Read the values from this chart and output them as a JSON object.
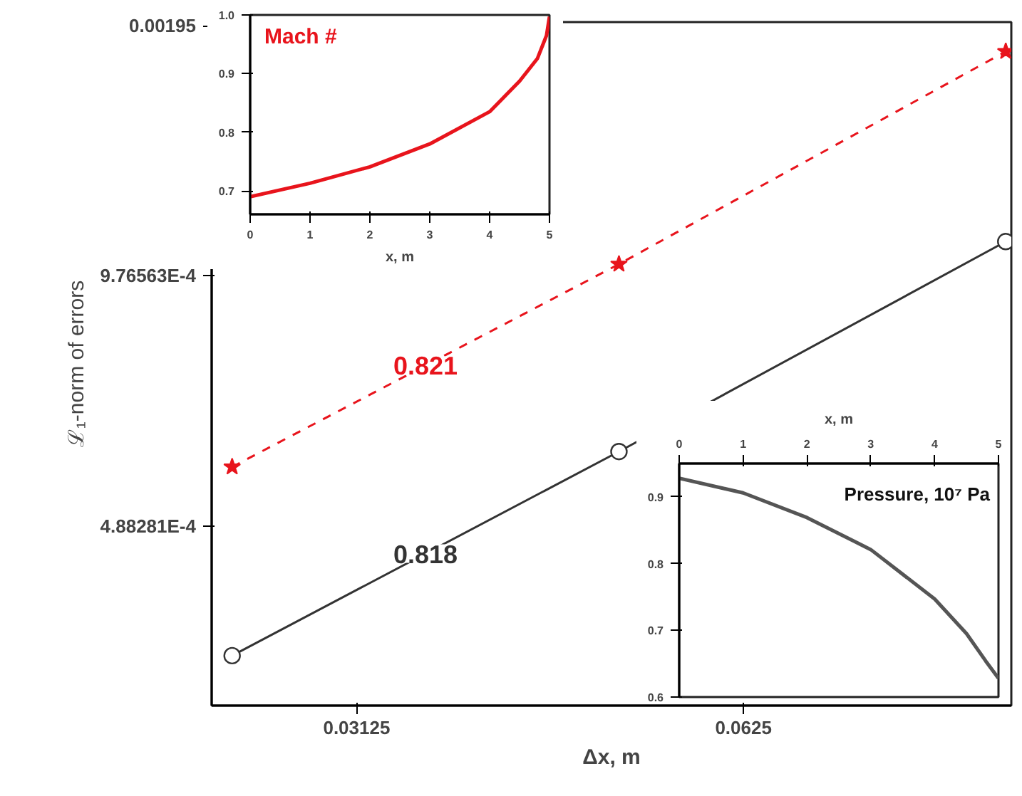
{
  "chart_data": [
    {
      "type": "line",
      "log": "xy",
      "xlabel": "Δx, m",
      "ylabel": "ℒ₁-norm of errors",
      "xlim": [
        0.0241,
        0.101
      ],
      "ylim": [
        0.000297,
        0.00197
      ],
      "xticks": [
        0.03125,
        0.0625
      ],
      "yticks": [
        {
          "value": 0.000488281,
          "label": "4.88281E-4"
        },
        {
          "value": 0.000976563,
          "label": "9.76563E-4"
        },
        0.00195
      ],
      "series": [
        {
          "color": "#333333",
          "marker": "circle",
          "line_style": "solid",
          "x": [
            0.025,
            0.05,
            0.1
          ],
          "values": [
            0.000341,
            0.0006,
            0.001073
          ]
        },
        {
          "color": "#e8141c",
          "marker": "star",
          "line_style": "dashed",
          "x": [
            0.025,
            0.05,
            0.1
          ],
          "values": [
            0.000575,
            0.001008,
            0.001816
          ]
        }
      ],
      "annotations": [
        "0.818",
        "0.821"
      ]
    },
    {
      "type": "line",
      "title": "Mach #",
      "xlabel": "x, m",
      "xlim": [
        0,
        5
      ],
      "ylim": [
        0.66,
        1.0
      ],
      "xticks": [
        0,
        1,
        2,
        3,
        4,
        5
      ],
      "yticks": [
        0.7,
        0.8,
        0.9,
        {
          "value": 1.0,
          "label": "1.0"
        }
      ],
      "series": [
        {
          "color": "#e8141c",
          "x": [
            0,
            1,
            2,
            3,
            4,
            4.5,
            4.8,
            4.95,
            5
          ],
          "values": [
            0.69,
            0.713,
            0.741,
            0.78,
            0.835,
            0.887,
            0.926,
            0.965,
            0.997
          ]
        }
      ]
    },
    {
      "type": "line",
      "title": "Pressure, 10⁷ Pa",
      "xlabel": "x, m",
      "xlim": [
        0,
        5
      ],
      "ylim": [
        0.6,
        0.95
      ],
      "xticks": [
        0,
        1,
        2,
        3,
        4,
        5
      ],
      "yticks": [
        0.6,
        0.7,
        0.8,
        0.9
      ],
      "series": [
        {
          "color": "#555555",
          "x": [
            0,
            1,
            2,
            3,
            4,
            4.5,
            4.8,
            5
          ],
          "values": [
            0.928,
            0.906,
            0.869,
            0.821,
            0.747,
            0.695,
            0.654,
            0.628
          ]
        }
      ]
    }
  ]
}
